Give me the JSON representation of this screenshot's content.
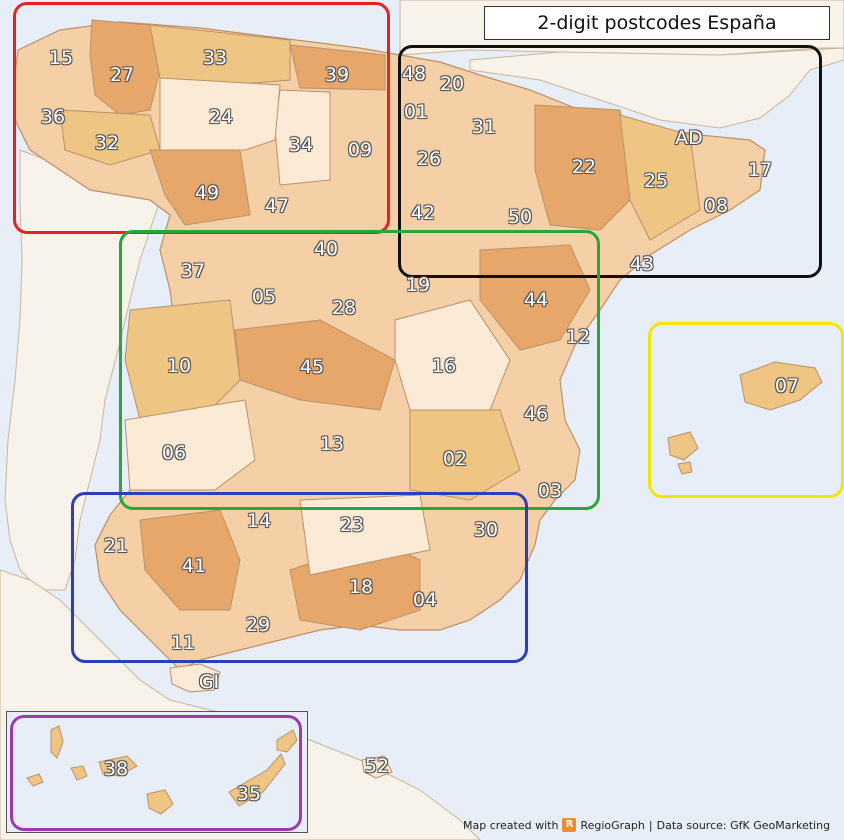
{
  "map": {
    "title": "2-digit postcodes España",
    "credit_prefix": "Map created with",
    "credit_brand": "RegioGraph",
    "credit_separator": "|",
    "credit_source": "Data source: GfK GeoMarketing",
    "brand_icon_letter": "R",
    "colors": {
      "sea": "#e8eef8",
      "land_outside": "#f7f2ea",
      "class_light": "#fbebd6",
      "class_medium": "#f5cfa6",
      "class_mid": "#efc584",
      "class_dark": "#e7a76a",
      "border": "#b9916a"
    },
    "highlight_boxes": [
      {
        "name": "northwest",
        "color": "#e82222"
      },
      {
        "name": "northeast",
        "color": "#111111"
      },
      {
        "name": "central",
        "color": "#2aa53a"
      },
      {
        "name": "balearic",
        "color": "#f2e600"
      },
      {
        "name": "south",
        "color": "#2c3fb8"
      },
      {
        "name": "canary",
        "color": "#9a3bb0"
      }
    ],
    "postcode_labels": [
      "15",
      "27",
      "33",
      "39",
      "48",
      "20",
      "36",
      "24",
      "01",
      "31",
      "32",
      "34",
      "09",
      "26",
      "AD",
      "22",
      "17",
      "25",
      "49",
      "47",
      "42",
      "50",
      "08",
      "40",
      "37",
      "19",
      "44",
      "43",
      "05",
      "28",
      "12",
      "10",
      "45",
      "16",
      "07",
      "46",
      "06",
      "13",
      "02",
      "03",
      "14",
      "23",
      "30",
      "21",
      "41",
      "18",
      "04",
      "29",
      "11",
      "GI",
      "38",
      "52",
      "35"
    ]
  }
}
